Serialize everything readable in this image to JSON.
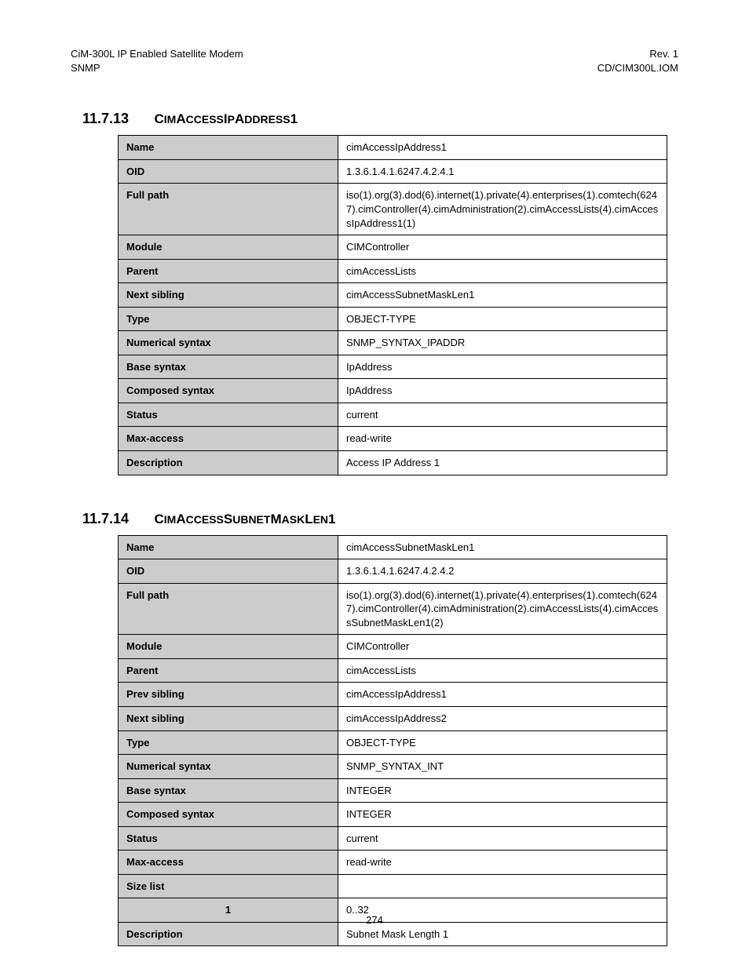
{
  "header": {
    "left_line1": "CiM-300L IP Enabled Satellite Modem",
    "left_line2": "SNMP",
    "right_line1": "Rev. 1",
    "right_line2": "CD/CIM300L.IOM"
  },
  "section1": {
    "number": "11.7.13",
    "title_parts": [
      {
        "t": "C",
        "c": "cap"
      },
      {
        "t": "IM",
        "c": "low"
      },
      {
        "t": "A",
        "c": "cap"
      },
      {
        "t": "CCESS",
        "c": "low"
      },
      {
        "t": "I",
        "c": "cap"
      },
      {
        "t": "P",
        "c": "low"
      },
      {
        "t": "A",
        "c": "cap"
      },
      {
        "t": "DDRESS",
        "c": "low"
      },
      {
        "t": "1",
        "c": "cap"
      }
    ],
    "rows": [
      {
        "label": "Name",
        "value": "cimAccessIpAddress1"
      },
      {
        "label": "OID",
        "value": "1.3.6.1.4.1.6247.4.2.4.1"
      },
      {
        "label": "Full path",
        "value": "iso(1).org(3).dod(6).internet(1).private(4).enterprises(1).comtech(6247).cimController(4).cimAdministration(2).cimAccessLists(4).cimAccessIpAddress1(1)"
      },
      {
        "label": "Module",
        "value": "CIMController"
      },
      {
        "label": "Parent",
        "value": "cimAccessLists"
      },
      {
        "label": "Next sibling",
        "value": "cimAccessSubnetMaskLen1"
      },
      {
        "label": "Type",
        "value": "OBJECT-TYPE"
      },
      {
        "label": "Numerical syntax",
        "value": "SNMP_SYNTAX_IPADDR"
      },
      {
        "label": "Base syntax",
        "value": "IpAddress"
      },
      {
        "label": "Composed syntax",
        "value": "IpAddress"
      },
      {
        "label": "Status",
        "value": "current"
      },
      {
        "label": "Max-access",
        "value": "read-write"
      },
      {
        "label": "Description",
        "value": "Access IP Address 1"
      }
    ]
  },
  "section2": {
    "number": "11.7.14",
    "title_parts": [
      {
        "t": "C",
        "c": "cap"
      },
      {
        "t": "IM",
        "c": "low"
      },
      {
        "t": "A",
        "c": "cap"
      },
      {
        "t": "CCESS",
        "c": "low"
      },
      {
        "t": "S",
        "c": "cap"
      },
      {
        "t": "UBNET",
        "c": "low"
      },
      {
        "t": "M",
        "c": "cap"
      },
      {
        "t": "ASK",
        "c": "low"
      },
      {
        "t": "L",
        "c": "cap"
      },
      {
        "t": "EN",
        "c": "low"
      },
      {
        "t": "1",
        "c": "cap"
      }
    ],
    "rows": [
      {
        "label": "Name",
        "value": "cimAccessSubnetMaskLen1"
      },
      {
        "label": "OID",
        "value": "1.3.6.1.4.1.6247.4.2.4.2"
      },
      {
        "label": "Full path",
        "value": "iso(1).org(3).dod(6).internet(1).private(4).enterprises(1).comtech(6247).cimController(4).cimAdministration(2).cimAccessLists(4).cimAccessSubnetMaskLen1(2)"
      },
      {
        "label": "Module",
        "value": "CIMController"
      },
      {
        "label": "Parent",
        "value": "cimAccessLists"
      },
      {
        "label": "Prev sibling",
        "value": "cimAccessIpAddress1"
      },
      {
        "label": "Next sibling",
        "value": "cimAccessIpAddress2"
      },
      {
        "label": "Type",
        "value": "OBJECT-TYPE"
      },
      {
        "label": "Numerical syntax",
        "value": "SNMP_SYNTAX_INT"
      },
      {
        "label": "Base syntax",
        "value": "INTEGER"
      },
      {
        "label": "Composed syntax",
        "value": "INTEGER"
      },
      {
        "label": "Status",
        "value": "current"
      },
      {
        "label": "Max-access",
        "value": "read-write"
      },
      {
        "label": "Size list",
        "value": ""
      },
      {
        "label": "1",
        "value": "0..32",
        "indent": true
      },
      {
        "label": "Description",
        "value": "Subnet Mask Length 1"
      }
    ]
  },
  "page_number": "274"
}
